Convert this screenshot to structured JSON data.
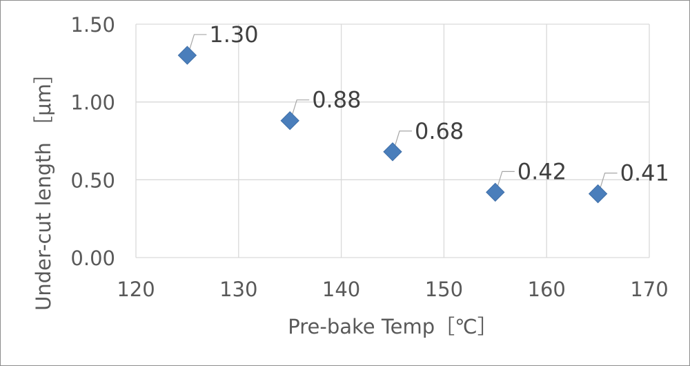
{
  "chart_data": {
    "type": "scatter",
    "title": "",
    "xlabel": "Pre-bake Temp［℃］",
    "ylabel": "Under-cut length ［μm］",
    "xlim": [
      120,
      170
    ],
    "ylim": [
      0.0,
      1.5
    ],
    "xticks": [
      "120",
      "130",
      "140",
      "150",
      "160",
      "170"
    ],
    "yticks": [
      "0.00",
      "0.50",
      "1.00",
      "1.50"
    ],
    "grid": true,
    "legend": "none",
    "marker": "diamond",
    "series": [
      {
        "color": "#4a7ebb",
        "points": [
          {
            "x": 125,
            "y": 1.3,
            "label": "1.30"
          },
          {
            "x": 135,
            "y": 0.88,
            "label": "0.88"
          },
          {
            "x": 145,
            "y": 0.68,
            "label": "0.68"
          },
          {
            "x": 155,
            "y": 0.42,
            "label": "0.42"
          },
          {
            "x": 165,
            "y": 0.41,
            "label": "0.41"
          }
        ]
      }
    ]
  }
}
